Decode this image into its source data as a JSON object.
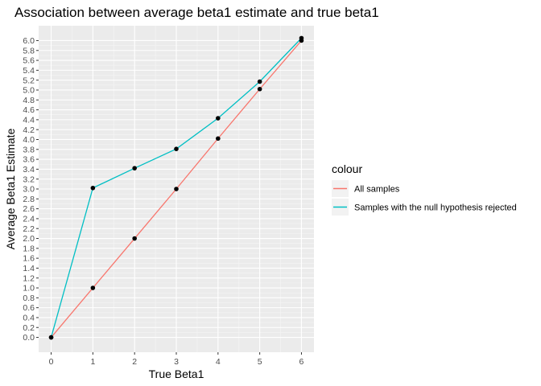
{
  "chart_data": {
    "type": "line",
    "title": "Association between average beta1 estimate and true beta1",
    "xlabel": "True Beta1",
    "ylabel": "Average Beta1 Estimate",
    "x": [
      0,
      1,
      2,
      3,
      4,
      5,
      6
    ],
    "xlim": [
      -0.3,
      6.3
    ],
    "ylim": [
      -0.3,
      6.3
    ],
    "x_ticks": [
      0,
      1,
      2,
      3,
      4,
      5,
      6
    ],
    "y_ticks": [
      0.0,
      0.2,
      0.4,
      0.6,
      0.8,
      1.0,
      1.2,
      1.4,
      1.6,
      1.8,
      2.0,
      2.2,
      2.4,
      2.6,
      2.8,
      3.0,
      3.2,
      3.4,
      3.6,
      3.8,
      4.0,
      4.2,
      4.4,
      4.6,
      4.8,
      5.0,
      5.2,
      5.4,
      5.6,
      5.8,
      6.0
    ],
    "grid": true,
    "background": "#ebebeb",
    "legend": {
      "title": "colour",
      "placement": "right"
    },
    "series": [
      {
        "name": "All samples",
        "color": "#f8766d",
        "values": [
          0.0,
          1.0,
          2.0,
          3.0,
          4.02,
          5.02,
          6.0
        ]
      },
      {
        "name": "Samples with the null hypothesis rejected",
        "color": "#00bfc4",
        "values": [
          0.0,
          3.02,
          3.42,
          3.81,
          4.43,
          5.17,
          6.05
        ]
      }
    ],
    "point_color": "#000000"
  }
}
